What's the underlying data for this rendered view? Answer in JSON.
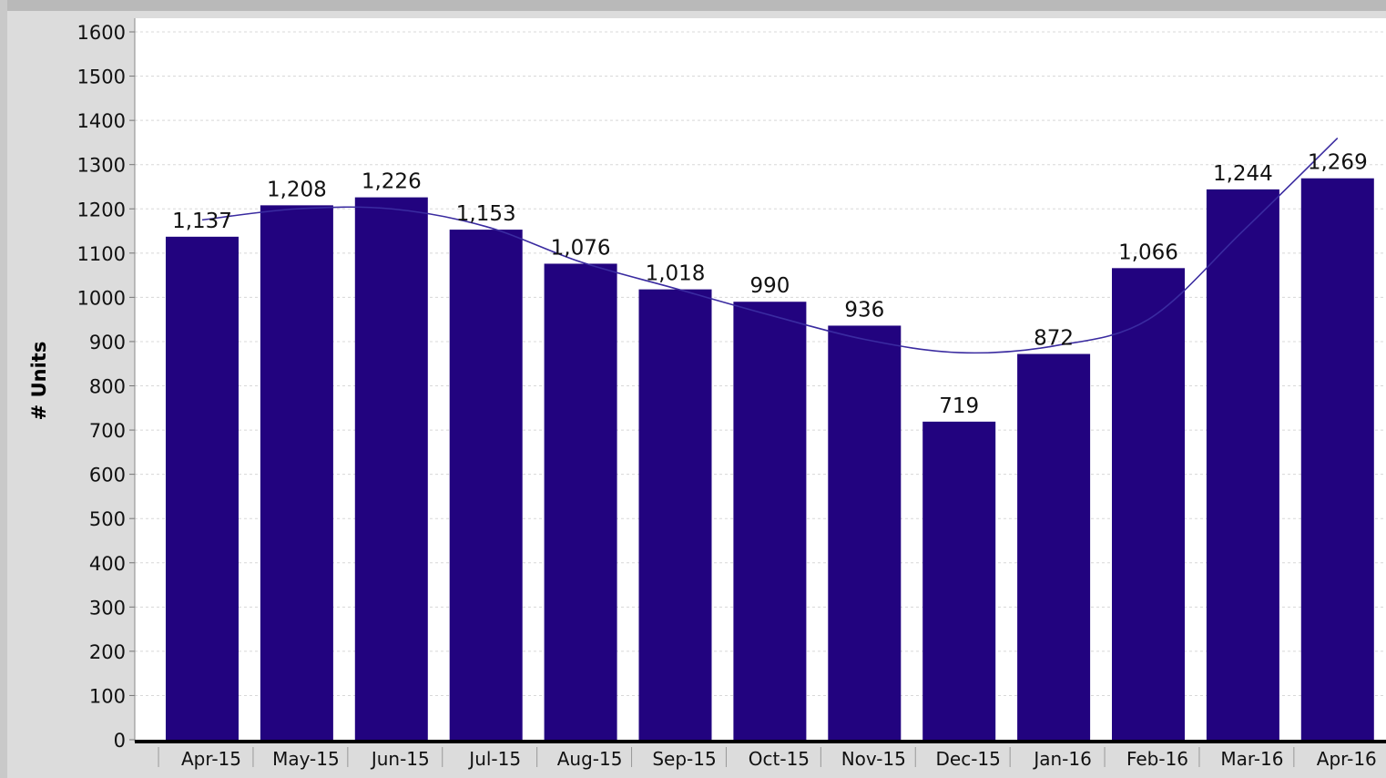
{
  "chart_data": {
    "type": "bar",
    "ylabel": "# Units",
    "xlabel": "",
    "ylim": [
      0,
      1600
    ],
    "yticks": [
      "0",
      "100",
      "200",
      "300",
      "400",
      "500",
      "600",
      "700",
      "800",
      "900",
      "1000",
      "1100",
      "1200",
      "1300",
      "1400",
      "1500",
      "1600"
    ],
    "categories": [
      "Apr-15",
      "May-15",
      "Jun-15",
      "Jul-15",
      "Aug-15",
      "Sep-15",
      "Oct-15",
      "Nov-15",
      "Dec-15",
      "Jan-16",
      "Feb-16",
      "Mar-16",
      "Apr-16"
    ],
    "values": [
      1137,
      1208,
      1226,
      1153,
      1076,
      1018,
      990,
      936,
      719,
      872,
      1066,
      1244,
      1269
    ],
    "value_labels": [
      "1,137",
      "1,208",
      "1,226",
      "1,153",
      "1,076",
      "1,018",
      "990",
      "936",
      "719",
      "872",
      "1,066",
      "1,244",
      "1,269"
    ],
    "trend_line": [
      1175,
      1200,
      1200,
      1160,
      1080,
      1020,
      960,
      905,
      875,
      890,
      950,
      1150,
      1360
    ],
    "grid": true,
    "legend": "none",
    "colors": {
      "bar": "#22037f",
      "trend": "#3a2ba0",
      "grid": "#d8d8d8",
      "plot_bg": "#ffffff"
    }
  }
}
